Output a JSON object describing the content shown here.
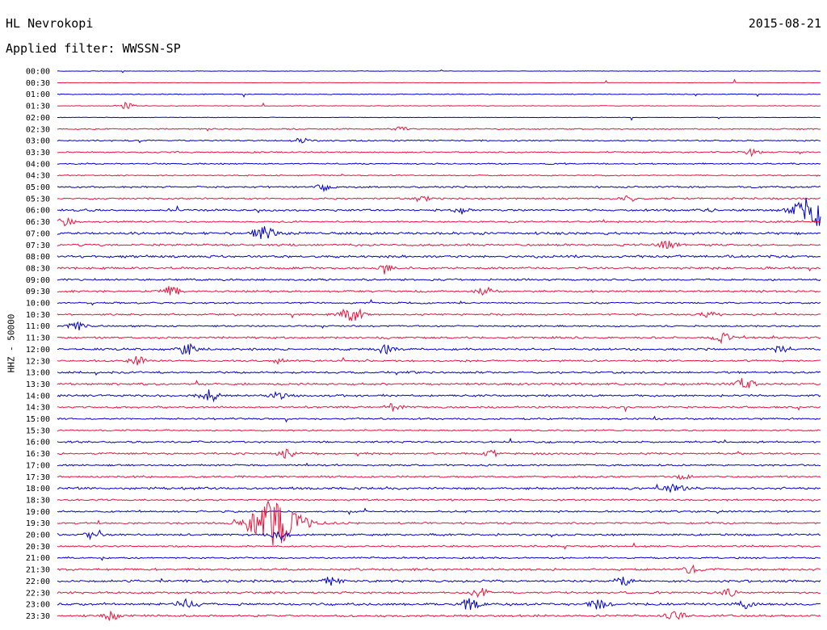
{
  "header": {
    "station": "HL Nevrokopi",
    "date": "2015-08-21",
    "filter": "Applied filter: WWSSN-SP"
  },
  "colors": {
    "odd": "#0000cc",
    "even": "#e8143c"
  },
  "chart_data": {
    "type": "line",
    "title": "HL Nevrokopi",
    "subtitle": "Applied filter: WWSSN-SP",
    "ylabel": "HHZ - 50000",
    "xlabel": "",
    "grid": false,
    "legend": "none",
    "rows": [
      "00:00",
      "00:30",
      "01:00",
      "01:30",
      "02:00",
      "02:30",
      "03:00",
      "03:30",
      "04:00",
      "04:30",
      "05:00",
      "05:30",
      "06:00",
      "06:30",
      "07:00",
      "07:30",
      "08:00",
      "08:30",
      "09:00",
      "09:30",
      "10:00",
      "10:30",
      "11:00",
      "11:30",
      "12:00",
      "12:30",
      "13:00",
      "13:30",
      "14:00",
      "14:30",
      "15:00",
      "15:30",
      "16:00",
      "16:30",
      "17:00",
      "17:30",
      "18:00",
      "18:30",
      "19:00",
      "19:30",
      "20:00",
      "20:30",
      "21:00",
      "21:30",
      "22:00",
      "22:30",
      "23:00",
      "23:30"
    ],
    "noise_level": [
      0.3,
      0.2,
      0.5,
      0.4,
      0.3,
      0.7,
      0.8,
      0.8,
      0.8,
      0.7,
      1.0,
      1.0,
      1.2,
      1.0,
      1.4,
      1.2,
      1.4,
      1.3,
      1.1,
      1.1,
      0.9,
      1.0,
      0.9,
      1.1,
      1.2,
      1.0,
      1.1,
      1.2,
      1.2,
      1.1,
      1.0,
      0.9,
      1.0,
      1.1,
      1.0,
      1.1,
      1.3,
      1.0,
      1.0,
      1.1,
      1.2,
      1.0,
      1.0,
      1.2,
      1.3,
      1.2,
      1.3,
      1.2
    ],
    "events": [
      {
        "row": 3,
        "t": 0.09,
        "amp": 4
      },
      {
        "row": 5,
        "t": 0.45,
        "amp": 3
      },
      {
        "row": 6,
        "t": 0.32,
        "amp": 3
      },
      {
        "row": 7,
        "t": 0.91,
        "amp": 5
      },
      {
        "row": 10,
        "t": 0.35,
        "amp": 4
      },
      {
        "row": 11,
        "t": 0.48,
        "amp": 3
      },
      {
        "row": 11,
        "t": 0.75,
        "amp": 3
      },
      {
        "row": 12,
        "t": 0.53,
        "amp": 4
      },
      {
        "row": 12,
        "t": 0.855,
        "amp": 3
      },
      {
        "row": 12,
        "t": 0.995,
        "amp": 22
      },
      {
        "row": 13,
        "t": 0.01,
        "amp": 5
      },
      {
        "row": 14,
        "t": 0.27,
        "amp": 9
      },
      {
        "row": 15,
        "t": 0.8,
        "amp": 6
      },
      {
        "row": 17,
        "t": 0.43,
        "amp": 4
      },
      {
        "row": 19,
        "t": 0.15,
        "amp": 6
      },
      {
        "row": 19,
        "t": 0.56,
        "amp": 5
      },
      {
        "row": 21,
        "t": 0.385,
        "amp": 10
      },
      {
        "row": 21,
        "t": 0.855,
        "amp": 4
      },
      {
        "row": 22,
        "t": 0.025,
        "amp": 5
      },
      {
        "row": 23,
        "t": 0.87,
        "amp": 6
      },
      {
        "row": 24,
        "t": 0.17,
        "amp": 6
      },
      {
        "row": 24,
        "t": 0.43,
        "amp": 5
      },
      {
        "row": 24,
        "t": 0.95,
        "amp": 5
      },
      {
        "row": 25,
        "t": 0.105,
        "amp": 5
      },
      {
        "row": 25,
        "t": 0.29,
        "amp": 4
      },
      {
        "row": 27,
        "t": 0.9,
        "amp": 7
      },
      {
        "row": 28,
        "t": 0.2,
        "amp": 7
      },
      {
        "row": 28,
        "t": 0.29,
        "amp": 4
      },
      {
        "row": 29,
        "t": 0.44,
        "amp": 5
      },
      {
        "row": 33,
        "t": 0.3,
        "amp": 5
      },
      {
        "row": 33,
        "t": 0.57,
        "amp": 4
      },
      {
        "row": 35,
        "t": 0.82,
        "amp": 4
      },
      {
        "row": 36,
        "t": 0.81,
        "amp": 5
      },
      {
        "row": 39,
        "t": 0.285,
        "amp": 30
      },
      {
        "row": 40,
        "t": 0.29,
        "amp": 6
      },
      {
        "row": 40,
        "t": 0.045,
        "amp": 4
      },
      {
        "row": 43,
        "t": 0.83,
        "amp": 5
      },
      {
        "row": 44,
        "t": 0.36,
        "amp": 5
      },
      {
        "row": 44,
        "t": 0.74,
        "amp": 5
      },
      {
        "row": 45,
        "t": 0.555,
        "amp": 6
      },
      {
        "row": 45,
        "t": 0.88,
        "amp": 4
      },
      {
        "row": 46,
        "t": 0.17,
        "amp": 7
      },
      {
        "row": 46,
        "t": 0.54,
        "amp": 7
      },
      {
        "row": 46,
        "t": 0.71,
        "amp": 6
      },
      {
        "row": 46,
        "t": 0.9,
        "amp": 5
      },
      {
        "row": 47,
        "t": 0.07,
        "amp": 5
      },
      {
        "row": 47,
        "t": 0.81,
        "amp": 6
      }
    ]
  }
}
